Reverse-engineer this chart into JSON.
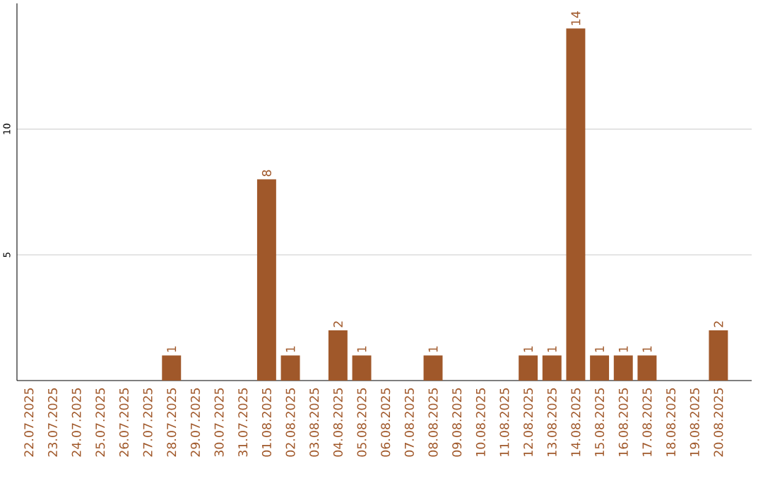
{
  "chart_data": {
    "type": "bar",
    "categories": [
      "22.07.2025",
      "23.07.2025",
      "24.07.2025",
      "25.07.2025",
      "26.07.2025",
      "27.07.2025",
      "28.07.2025",
      "29.07.2025",
      "30.07.2025",
      "31.07.2025",
      "01.08.2025",
      "02.08.2025",
      "03.08.2025",
      "04.08.2025",
      "05.08.2025",
      "06.08.2025",
      "07.08.2025",
      "08.08.2025",
      "09.08.2025",
      "10.08.2025",
      "11.08.2025",
      "12.08.2025",
      "13.08.2025",
      "14.08.2025",
      "15.08.2025",
      "16.08.2025",
      "17.08.2025",
      "18.08.2025",
      "19.08.2025",
      "20.08.2025"
    ],
    "values": [
      0,
      0,
      0,
      0,
      0,
      0,
      1,
      0,
      0,
      0,
      8,
      1,
      0,
      2,
      1,
      0,
      0,
      1,
      0,
      0,
      0,
      1,
      1,
      14,
      1,
      1,
      1,
      0,
      0,
      2
    ],
    "value_labels": [
      null,
      null,
      null,
      null,
      null,
      null,
      "1",
      null,
      null,
      null,
      "8",
      "1",
      null,
      "2",
      "1",
      null,
      null,
      "1",
      null,
      null,
      null,
      "1",
      "1",
      "14",
      "1",
      "1",
      "1",
      null,
      null,
      "2"
    ],
    "color": "#a0582a",
    "ylim": [
      0,
      15
    ],
    "yticks": [
      5,
      10
    ],
    "grid": "y"
  }
}
